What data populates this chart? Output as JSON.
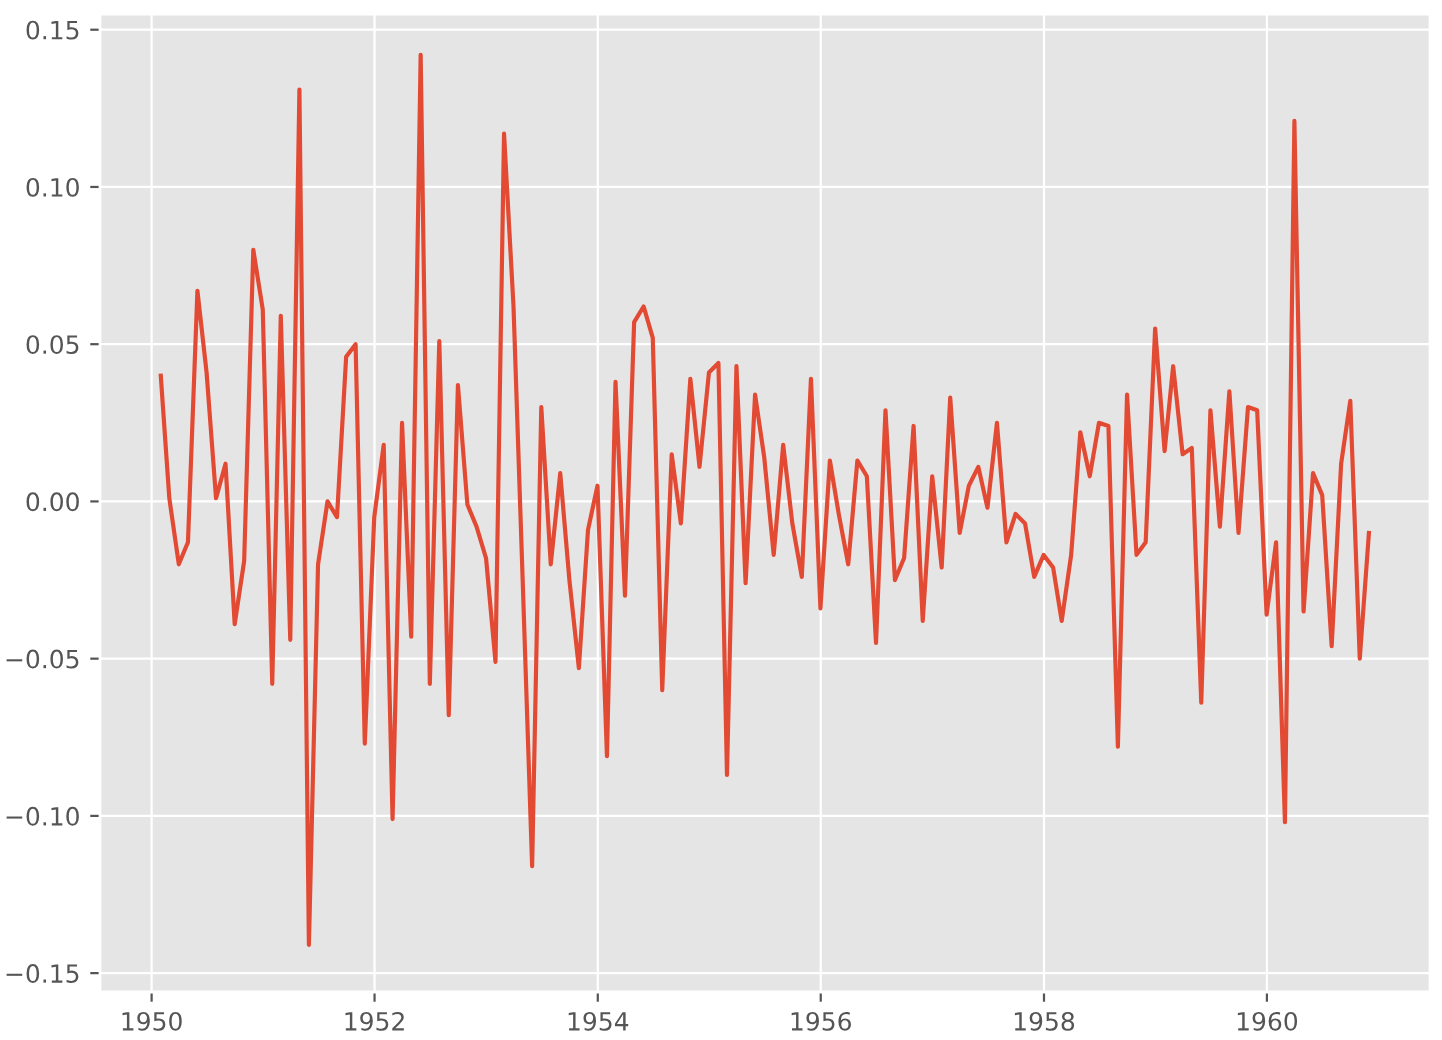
{
  "chart_data": {
    "type": "line",
    "x": [
      "1950-01-31",
      "1950-02-28",
      "1950-03-31",
      "1950-04-30",
      "1950-05-31",
      "1950-06-30",
      "1950-07-31",
      "1950-08-31",
      "1950-09-30",
      "1950-10-31",
      "1950-11-30",
      "1950-12-31",
      "1951-01-31",
      "1951-02-28",
      "1951-03-31",
      "1951-04-30",
      "1951-05-31",
      "1951-06-30",
      "1951-07-31",
      "1951-08-31",
      "1951-09-30",
      "1951-10-31",
      "1951-11-30",
      "1951-12-31",
      "1952-01-31",
      "1952-02-29",
      "1952-03-31",
      "1952-04-30",
      "1952-05-31",
      "1952-06-30",
      "1952-07-31",
      "1952-08-31",
      "1952-09-30",
      "1952-10-31",
      "1952-11-30",
      "1952-12-31",
      "1953-01-31",
      "1953-02-28",
      "1953-03-31",
      "1953-04-30",
      "1953-05-31",
      "1953-06-30",
      "1953-07-31",
      "1953-08-31",
      "1953-09-30",
      "1953-10-31",
      "1953-11-30",
      "1953-12-31",
      "1954-01-31",
      "1954-02-28",
      "1954-03-31",
      "1954-04-30",
      "1954-05-31",
      "1954-06-30",
      "1954-07-31",
      "1954-08-31",
      "1954-09-30",
      "1954-10-31",
      "1954-11-30",
      "1954-12-31",
      "1955-01-31",
      "1955-02-28",
      "1955-03-31",
      "1955-04-30",
      "1955-05-31",
      "1955-06-30",
      "1955-07-31",
      "1955-08-31",
      "1955-09-30",
      "1955-10-31",
      "1955-11-30",
      "1955-12-31",
      "1956-01-31",
      "1956-02-29",
      "1956-03-31",
      "1956-04-30",
      "1956-05-31",
      "1956-06-30",
      "1956-07-31",
      "1956-08-31",
      "1956-09-30",
      "1956-10-31",
      "1956-11-30",
      "1956-12-31",
      "1957-01-31",
      "1957-02-28",
      "1957-03-31",
      "1957-04-30",
      "1957-05-31",
      "1957-06-30",
      "1957-07-31",
      "1957-08-31",
      "1957-09-30",
      "1957-10-31",
      "1957-11-30",
      "1957-12-31",
      "1958-01-31",
      "1958-02-28",
      "1958-03-31",
      "1958-04-30",
      "1958-05-31",
      "1958-06-30",
      "1958-07-31",
      "1958-08-31",
      "1958-09-30",
      "1958-10-31",
      "1958-11-30",
      "1958-12-31",
      "1959-01-31",
      "1959-02-28",
      "1959-03-31",
      "1959-04-30",
      "1959-05-31",
      "1959-06-30",
      "1959-07-31",
      "1959-08-31",
      "1959-09-30",
      "1959-10-31",
      "1959-11-30",
      "1959-12-31",
      "1960-01-31",
      "1960-02-29",
      "1960-03-31",
      "1960-04-30",
      "1960-05-31",
      "1960-06-30",
      "1960-07-31",
      "1960-08-31",
      "1960-09-30",
      "1960-10-31",
      "1960-11-30"
    ],
    "series": [
      {
        "color": "#e24a33",
        "values": [
          0.04,
          0.001,
          -0.02,
          -0.013,
          0.067,
          0.041,
          0.001,
          0.012,
          -0.039,
          -0.019,
          0.08,
          0.061,
          -0.058,
          0.059,
          -0.044,
          0.131,
          -0.141,
          -0.02,
          0.0,
          -0.005,
          0.046,
          0.05,
          -0.077,
          -0.005,
          0.018,
          -0.101,
          0.025,
          -0.043,
          0.142,
          -0.058,
          0.051,
          -0.068,
          0.037,
          -0.001,
          -0.008,
          -0.018,
          -0.051,
          0.117,
          0.062,
          -0.025,
          -0.116,
          0.03,
          -0.02,
          0.009,
          -0.025,
          -0.053,
          -0.009,
          0.005,
          -0.081,
          0.038,
          -0.03,
          0.057,
          0.062,
          0.052,
          -0.06,
          0.015,
          -0.007,
          0.039,
          0.011,
          0.041,
          0.044,
          -0.087,
          0.043,
          -0.026,
          0.034,
          0.014,
          -0.017,
          0.018,
          -0.007,
          -0.024,
          0.039,
          -0.034,
          0.013,
          -0.004,
          -0.02,
          0.013,
          0.008,
          -0.045,
          0.029,
          -0.025,
          -0.018,
          0.024,
          -0.038,
          0.008,
          -0.021,
          0.033,
          -0.01,
          0.005,
          0.011,
          -0.002,
          0.025,
          -0.013,
          -0.004,
          -0.007,
          -0.024,
          -0.017,
          -0.021,
          -0.038,
          -0.017,
          0.022,
          0.008,
          0.025,
          0.024,
          -0.078,
          0.034,
          -0.017,
          -0.013,
          0.055,
          0.016,
          0.043,
          0.015,
          0.017,
          -0.064,
          0.029,
          -0.008,
          0.035,
          -0.01,
          0.03,
          0.029,
          -0.036,
          -0.013,
          -0.102,
          0.121,
          -0.035,
          0.009,
          0.002,
          -0.046,
          0.012,
          0.032,
          -0.05,
          -0.01
        ]
      }
    ],
    "xlim": [
      "1949-07-16",
      "1961-06-18"
    ],
    "xticks": [
      {
        "value": "1950",
        "label": "1950"
      },
      {
        "value": "1952",
        "label": "1952"
      },
      {
        "value": "1954",
        "label": "1954"
      },
      {
        "value": "1956",
        "label": "1956"
      },
      {
        "value": "1958",
        "label": "1958"
      },
      {
        "value": "1960",
        "label": "1960"
      }
    ],
    "ylim": [
      -0.156,
      0.155
    ],
    "yticks": [
      {
        "value": -0.15,
        "label": "−0.15"
      },
      {
        "value": -0.1,
        "label": "−0.10"
      },
      {
        "value": -0.05,
        "label": "−0.05"
      },
      {
        "value": 0,
        "label": "0.00"
      },
      {
        "value": 0.05,
        "label": "0.05"
      },
      {
        "value": 0.1,
        "label": "0.10"
      },
      {
        "value": 0.15,
        "label": "0.15"
      }
    ],
    "grid": true,
    "legend": false
  }
}
